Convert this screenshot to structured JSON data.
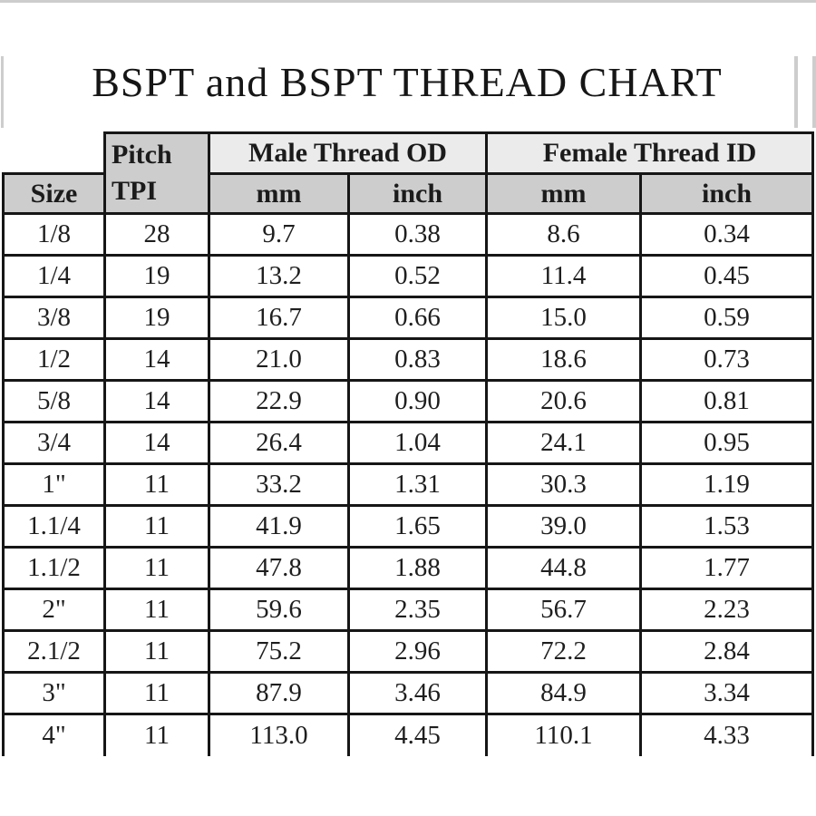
{
  "title": "BSPT and BSPT THREAD CHART",
  "header": {
    "size": "Size",
    "pitch_line1": "Pitch",
    "pitch_line2": "TPI",
    "male_od": "Male Thread OD",
    "female_id": "Female Thread ID",
    "mm": "mm",
    "inch": "inch"
  },
  "chart_data": {
    "type": "table",
    "title": "BSPT and BSPT THREAD CHART",
    "column_groups": [
      {
        "label": "Size",
        "span": 1
      },
      {
        "label": "Pitch TPI",
        "span": 1
      },
      {
        "label": "Male Thread OD",
        "span": 2,
        "units": [
          "mm",
          "inch"
        ]
      },
      {
        "label": "Female Thread ID",
        "span": 2,
        "units": [
          "mm",
          "inch"
        ]
      }
    ],
    "columns": [
      "Size",
      "Pitch TPI",
      "Male Thread OD mm",
      "Male Thread OD inch",
      "Female Thread ID mm",
      "Female Thread ID inch"
    ],
    "rows": [
      [
        "1/8",
        "28",
        "9.7",
        "0.38",
        "8.6",
        "0.34"
      ],
      [
        "1/4",
        "19",
        "13.2",
        "0.52",
        "11.4",
        "0.45"
      ],
      [
        "3/8",
        "19",
        "16.7",
        "0.66",
        "15.0",
        "0.59"
      ],
      [
        "1/2",
        "14",
        "21.0",
        "0.83",
        "18.6",
        "0.73"
      ],
      [
        "5/8",
        "14",
        "22.9",
        "0.90",
        "20.6",
        "0.81"
      ],
      [
        "3/4",
        "14",
        "26.4",
        "1.04",
        "24.1",
        "0.95"
      ],
      [
        "1\"",
        "11",
        "33.2",
        "1.31",
        "30.3",
        "1.19"
      ],
      [
        "1.1/4",
        "11",
        "41.9",
        "1.65",
        "39.0",
        "1.53"
      ],
      [
        "1.1/2",
        "11",
        "47.8",
        "1.88",
        "44.8",
        "1.77"
      ],
      [
        "2\"",
        "11",
        "59.6",
        "2.35",
        "56.7",
        "2.23"
      ],
      [
        "2.1/2",
        "11",
        "75.2",
        "2.96",
        "72.2",
        "2.84"
      ],
      [
        "3\"",
        "11",
        "87.9",
        "3.46",
        "84.9",
        "3.34"
      ],
      [
        "4\"",
        "11",
        "113.0",
        "4.45",
        "110.1",
        "4.33"
      ]
    ]
  },
  "colors": {
    "group_header_bg": "#ebebeb",
    "header_bg": "#cdcdcd",
    "border": "#161616",
    "artifact_line": "#cdcdcd",
    "text": "#1e1e1e",
    "background": "#ffffff"
  }
}
